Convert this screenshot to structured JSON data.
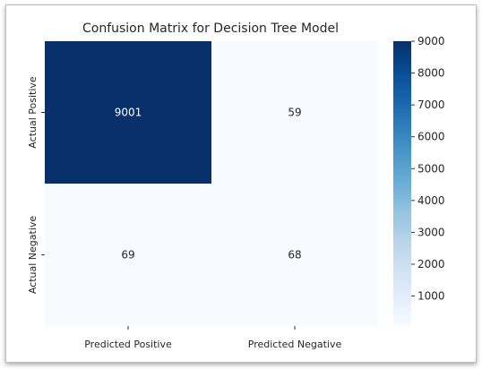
{
  "chart_data": {
    "type": "heatmap",
    "title": "Confusion Matrix for Decision Tree Model",
    "row_labels": [
      "Actual Positive",
      "Actual Negative"
    ],
    "col_labels": [
      "Predicted Positive",
      "Predicted Negative"
    ],
    "values": [
      [
        9001,
        59
      ],
      [
        69,
        68
      ]
    ],
    "annotations": [
      [
        "9001",
        "59"
      ],
      [
        "69",
        "68"
      ]
    ],
    "colormap": "Blues",
    "colorbar": {
      "ticks": [
        1000,
        2000,
        3000,
        4000,
        5000,
        6000,
        7000,
        8000,
        9000
      ],
      "tick_labels": [
        "1000",
        "2000",
        "3000",
        "4000",
        "5000",
        "6000",
        "7000",
        "8000",
        "9000"
      ],
      "range": [
        59,
        9001
      ]
    }
  }
}
